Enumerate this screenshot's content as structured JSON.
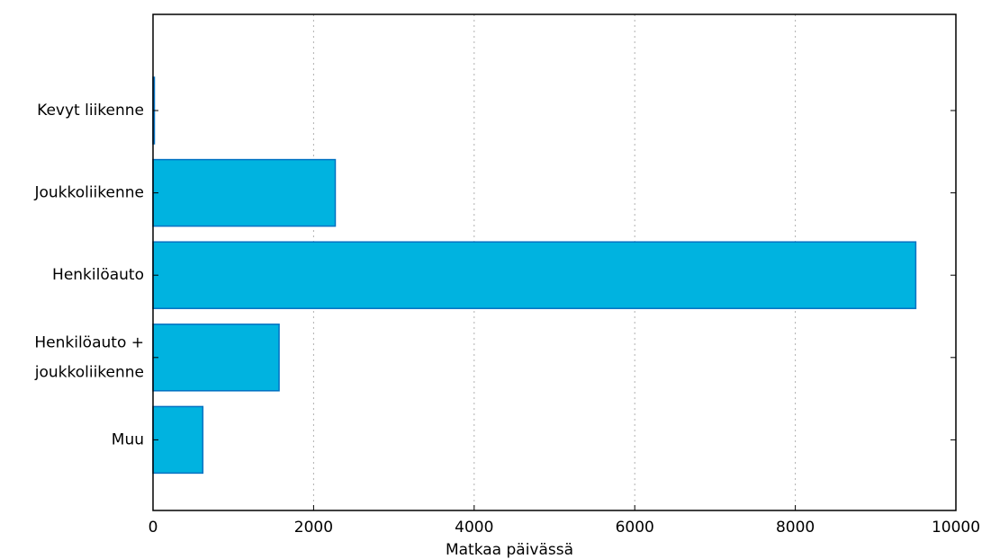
{
  "chart_data": {
    "type": "bar",
    "orientation": "horizontal",
    "categories": [
      "Kevyt liikenne",
      "Joukkoliikenne",
      "Henkilöauto",
      "Henkilöauto + joukkoliikenne",
      "Muu"
    ],
    "category_label_lines": [
      [
        "Kevyt liikenne"
      ],
      [
        "Joukkoliikenne"
      ],
      [
        "Henkilöauto"
      ],
      [
        "Henkilöauto +",
        "joukkoliikenne"
      ],
      [
        "Muu"
      ]
    ],
    "values": [
      15,
      2270,
      9500,
      1570,
      620
    ],
    "title": "",
    "xlabel": "Matkaa päivässä",
    "ylabel": "",
    "xlim": [
      0,
      10000
    ],
    "xticks": [
      0,
      2000,
      4000,
      6000,
      8000,
      10000
    ],
    "xtick_labels": [
      "0",
      "2000",
      "4000",
      "6000",
      "8000",
      "10000"
    ],
    "grid": "vertical dotted",
    "legend": "none",
    "colors": {
      "bar_fill": "#00b3e0",
      "bar_edge": "#0071c2",
      "grid": "#b0b0b0",
      "axis": "#000000"
    }
  }
}
